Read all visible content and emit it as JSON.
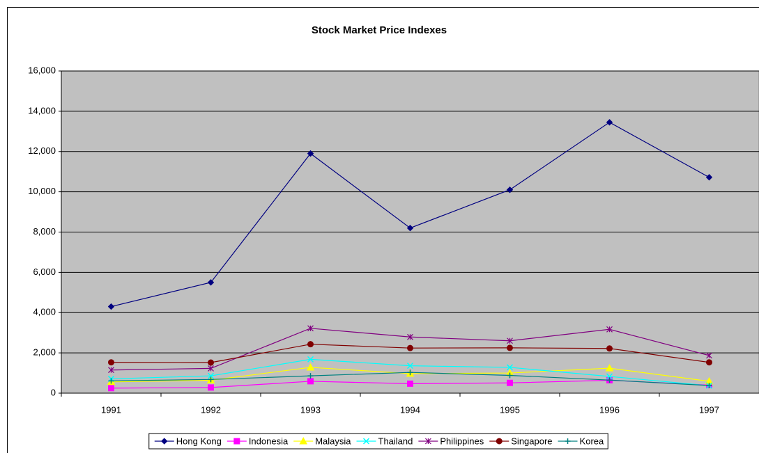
{
  "chart_data": {
    "type": "line",
    "title": "Stock Market Price Indexes",
    "categories": [
      "1991",
      "1992",
      "1993",
      "1994",
      "1995",
      "1996",
      "1997"
    ],
    "series": [
      {
        "name": "Hong Kong",
        "color": "#000080",
        "marker": "diamond",
        "values": [
          4300,
          5500,
          11900,
          8200,
          10100,
          13450,
          10720
        ]
      },
      {
        "name": "Indonesia",
        "color": "#ff00ff",
        "marker": "square",
        "values": [
          250,
          280,
          590,
          470,
          510,
          640,
          400
        ]
      },
      {
        "name": "Malaysia",
        "color": "#ffff00",
        "marker": "triangle",
        "values": [
          560,
          640,
          1280,
          970,
          1000,
          1240,
          590
        ]
      },
      {
        "name": "Thailand",
        "color": "#00ffff",
        "marker": "x",
        "values": [
          710,
          860,
          1680,
          1360,
          1280,
          830,
          370
        ]
      },
      {
        "name": "Philippines",
        "color": "#800080",
        "marker": "star",
        "values": [
          1150,
          1230,
          3220,
          2790,
          2600,
          3170,
          1870
        ]
      },
      {
        "name": "Singapore",
        "color": "#800000",
        "marker": "circle",
        "values": [
          1530,
          1520,
          2430,
          2240,
          2250,
          2220,
          1530
        ]
      },
      {
        "name": "Korea",
        "color": "#008080",
        "marker": "plus",
        "values": [
          610,
          680,
          860,
          1030,
          880,
          650,
          380
        ]
      }
    ],
    "ylim": [
      0,
      16000
    ],
    "yticks": [
      0,
      {
        "value": 2000,
        "label": "2,000"
      },
      {
        "value": 4000,
        "label": "4,000"
      },
      {
        "value": 6000,
        "label": "6,000"
      },
      {
        "value": 8000,
        "label": "8,000"
      },
      {
        "value": 10000,
        "label": "10,000"
      },
      {
        "value": 12000,
        "label": "12,000"
      },
      {
        "value": 14000,
        "label": "14,000"
      },
      {
        "value": 16000,
        "label": "16,000"
      }
    ],
    "grid": true,
    "legend": "bottom",
    "plot_background": "#c0c0c0"
  }
}
